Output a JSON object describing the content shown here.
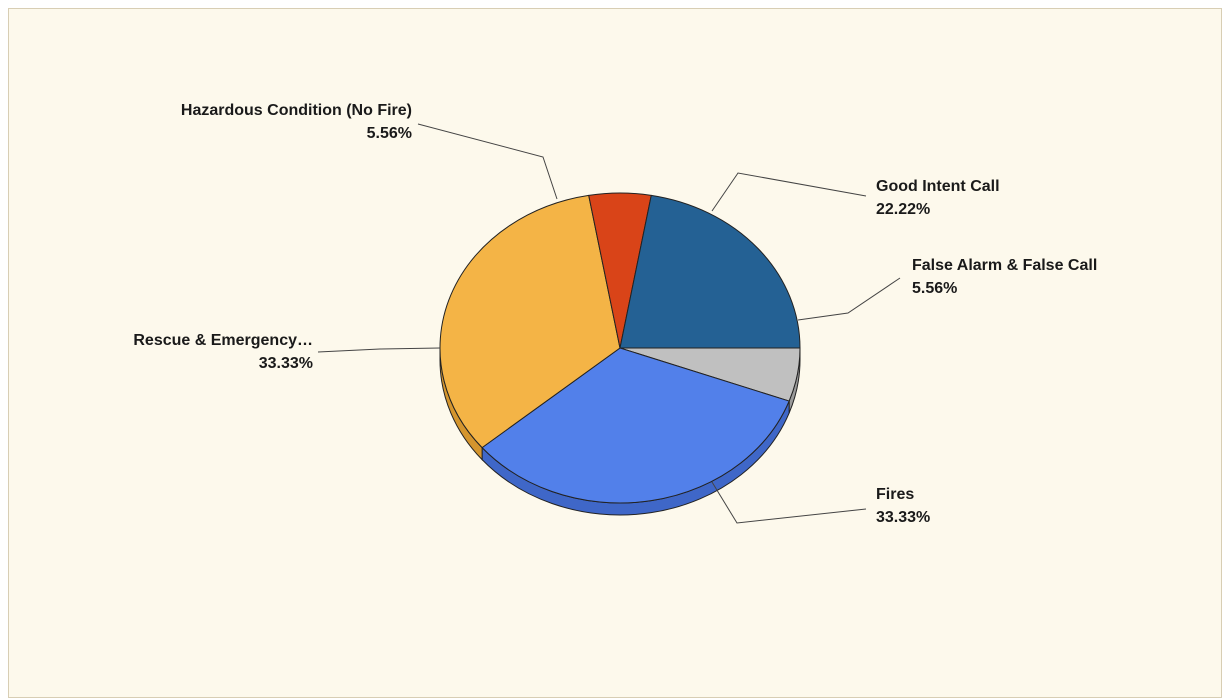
{
  "chart_data": {
    "type": "pie",
    "title": "",
    "slices": [
      {
        "label": "False Alarm & False Call",
        "value": 5.56,
        "pct_label": "5.56%",
        "color": "#c0c0c0",
        "side_color": "#9a9a9a"
      },
      {
        "label": "Fires",
        "value": 33.33,
        "pct_label": "33.33%",
        "color": "#5280ea",
        "side_color": "#3f67c8"
      },
      {
        "label": "Rescue & Emergency…",
        "value": 33.33,
        "pct_label": "33.33%",
        "color": "#f4b446",
        "side_color": "#d4952e"
      },
      {
        "label": "Hazardous Condition (No Fire)",
        "value": 5.56,
        "pct_label": "5.56%",
        "color": "#d94418",
        "side_color": "#b0340f"
      },
      {
        "label": "Good Intent Call",
        "value": 22.22,
        "pct_label": "22.22%",
        "color": "#246194",
        "side_color": "#1a4a73"
      }
    ],
    "legend": "none",
    "style": "3d"
  }
}
